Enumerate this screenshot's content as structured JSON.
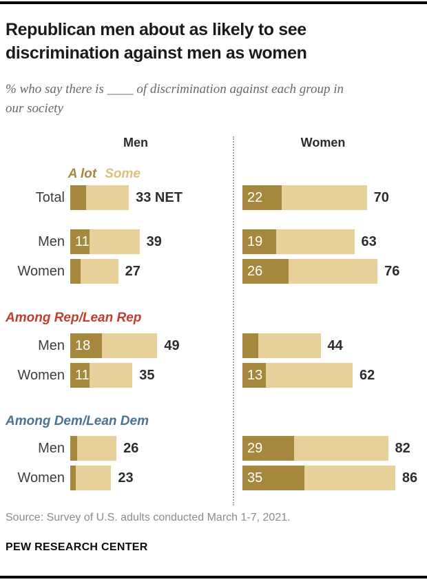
{
  "header": {
    "title": "Republican men about as likely to see discrimination against men as women",
    "subtitle": "% who say there is ____ of discrimination against each group in our society"
  },
  "chart_data": {
    "type": "bar",
    "stacked": true,
    "orientation": "horizontal",
    "unit": "%",
    "columns": [
      "Men",
      "Women"
    ],
    "legend": [
      {
        "label": "A lot",
        "color": "#a5883d"
      },
      {
        "label": "Some",
        "color": "#e7d09a"
      }
    ],
    "net_note": "NET",
    "rows": [
      {
        "label": "Total",
        "men": {
          "a_lot": 9,
          "a_lot_shown": false,
          "net": 33,
          "net_suffix": "NET"
        },
        "women": {
          "a_lot": 22,
          "a_lot_shown": true,
          "net": 70
        }
      },
      {
        "label": "Men",
        "men": {
          "a_lot": 11,
          "a_lot_shown": true,
          "net": 39
        },
        "women": {
          "a_lot": 19,
          "a_lot_shown": true,
          "net": 63
        }
      },
      {
        "label": "Women",
        "men": {
          "a_lot": 6,
          "a_lot_shown": false,
          "net": 27
        },
        "women": {
          "a_lot": 26,
          "a_lot_shown": true,
          "net": 76
        }
      },
      {
        "section": {
          "label": "Among Rep/Lean Rep",
          "color": "#c23d2c"
        },
        "label": "Men",
        "men": {
          "a_lot": 18,
          "a_lot_shown": true,
          "net": 49
        },
        "women": {
          "a_lot": 9,
          "a_lot_shown": false,
          "net": 44
        }
      },
      {
        "label": "Women",
        "men": {
          "a_lot": 11,
          "a_lot_shown": true,
          "net": 35
        },
        "women": {
          "a_lot": 13,
          "a_lot_shown": true,
          "net": 62
        }
      },
      {
        "section": {
          "label": "Among Dem/Lean Dem",
          "color": "#4a7390"
        },
        "label": "Men",
        "men": {
          "a_lot": 4,
          "a_lot_shown": false,
          "net": 26
        },
        "women": {
          "a_lot": 29,
          "a_lot_shown": true,
          "net": 82
        }
      },
      {
        "label": "Women",
        "men": {
          "a_lot": 3,
          "a_lot_shown": false,
          "net": 23
        },
        "women": {
          "a_lot": 35,
          "a_lot_shown": true,
          "net": 86
        }
      }
    ]
  },
  "footer": {
    "source": "Source: Survey of U.S. adults conducted March 1-7, 2021.",
    "brand": "PEW RESEARCH CENTER"
  }
}
